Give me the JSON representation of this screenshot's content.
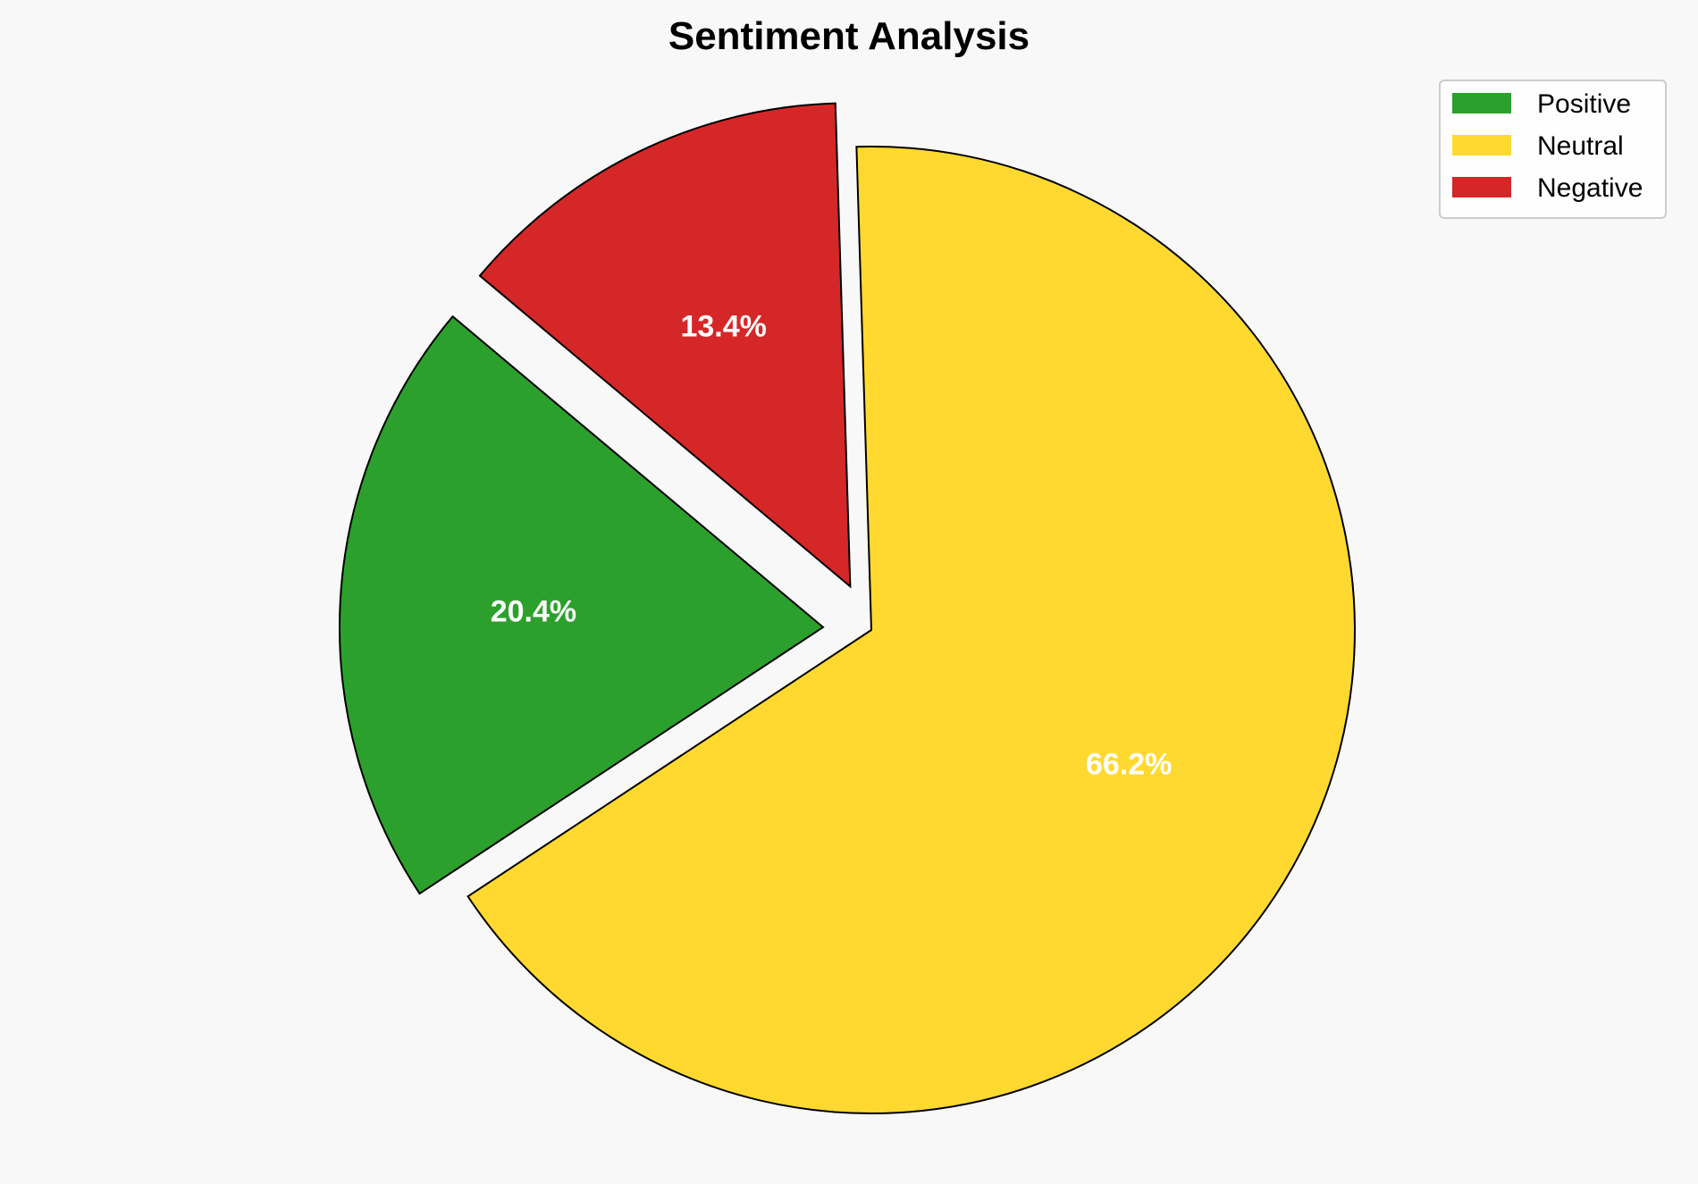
{
  "chart_data": {
    "type": "pie",
    "title": "Sentiment Analysis",
    "categories": [
      "Positive",
      "Neutral",
      "Negative"
    ],
    "values": [
      20.4,
      66.2,
      13.4
    ],
    "labels": [
      "20.4%",
      "66.2%",
      "13.4%"
    ],
    "colors": [
      "#2ca02c",
      "#ffd92f",
      "#d62728"
    ],
    "explode": [
      0.1,
      0,
      0.1
    ],
    "start_angle": 140,
    "direction": "counterclockwise",
    "edge_color": "#000000",
    "legend_placement": "top-right",
    "background": "#f8f8f8"
  }
}
